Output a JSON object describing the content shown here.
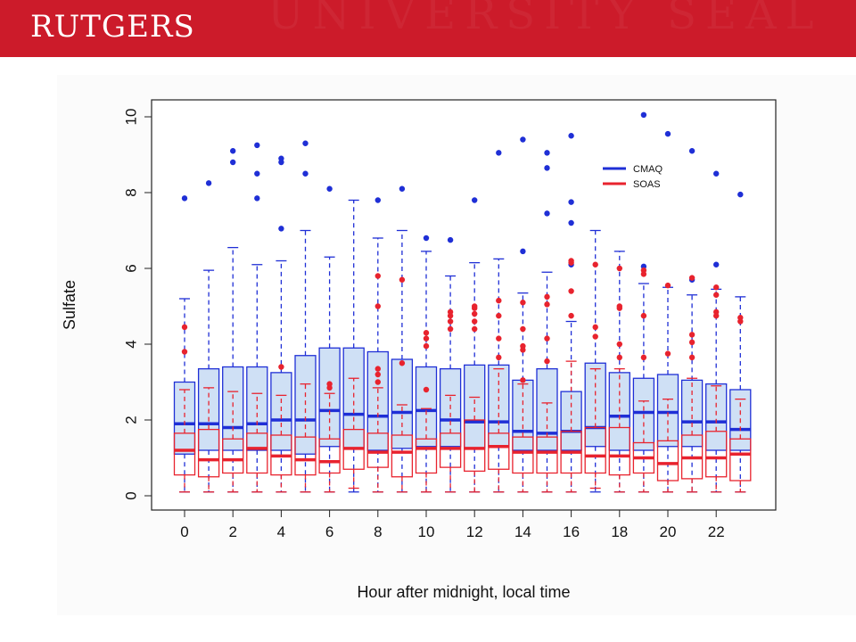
{
  "header": {
    "logo_text": "RUTGERS",
    "banner_color": "#cc1b2a"
  },
  "chart_data": {
    "type": "box",
    "title": "",
    "xlabel": "Hour after midnight, local time",
    "ylabel": "Sulfate",
    "categories": [
      0,
      1,
      2,
      3,
      4,
      5,
      6,
      7,
      8,
      9,
      10,
      11,
      12,
      13,
      14,
      15,
      16,
      17,
      18,
      19,
      20,
      21,
      22,
      23
    ],
    "xticks": [
      0,
      2,
      4,
      6,
      8,
      10,
      12,
      14,
      16,
      18,
      20,
      22
    ],
    "ylim": [
      0,
      10
    ],
    "yticks": [
      0,
      2,
      4,
      6,
      8,
      10
    ],
    "grid": false,
    "legend_position": "top-right",
    "series": [
      {
        "name": "CMAQ",
        "color": "#1f2fd6",
        "fill": "#cfe0f5",
        "boxes": [
          {
            "whisker_low": 0.1,
            "q1": 1.1,
            "median": 1.9,
            "q3": 3.0,
            "whisker_high": 5.2,
            "outliers": [
              7.85
            ]
          },
          {
            "whisker_low": 0.1,
            "q1": 1.2,
            "median": 1.9,
            "q3": 3.35,
            "whisker_high": 5.95,
            "outliers": [
              8.25
            ]
          },
          {
            "whisker_low": 0.1,
            "q1": 1.2,
            "median": 1.8,
            "q3": 3.4,
            "whisker_high": 6.55,
            "outliers": [
              8.8,
              9.1
            ]
          },
          {
            "whisker_low": 0.1,
            "q1": 1.2,
            "median": 1.9,
            "q3": 3.4,
            "whisker_high": 6.1,
            "outliers": [
              7.85,
              8.5,
              9.25
            ]
          },
          {
            "whisker_low": 0.1,
            "q1": 1.2,
            "median": 2.0,
            "q3": 3.25,
            "whisker_high": 6.2,
            "outliers": [
              7.05,
              8.8,
              8.9
            ]
          },
          {
            "whisker_low": 0.1,
            "q1": 1.1,
            "median": 2.0,
            "q3": 3.7,
            "whisker_high": 7.0,
            "outliers": [
              8.5,
              9.3
            ]
          },
          {
            "whisker_low": 0.1,
            "q1": 1.3,
            "median": 2.25,
            "q3": 3.9,
            "whisker_high": 6.3,
            "outliers": [
              8.1
            ]
          },
          {
            "whisker_low": 0.1,
            "q1": 1.25,
            "median": 2.15,
            "q3": 3.9,
            "whisker_high": 7.8,
            "outliers": []
          },
          {
            "whisker_low": 0.1,
            "q1": 1.2,
            "median": 2.1,
            "q3": 3.8,
            "whisker_high": 6.8,
            "outliers": [
              7.8
            ]
          },
          {
            "whisker_low": 0.1,
            "q1": 1.25,
            "median": 2.2,
            "q3": 3.6,
            "whisker_high": 7.0,
            "outliers": [
              8.1
            ]
          },
          {
            "whisker_low": 0.1,
            "q1": 1.3,
            "median": 2.25,
            "q3": 3.4,
            "whisker_high": 6.45,
            "outliers": [
              6.8
            ]
          },
          {
            "whisker_low": 0.1,
            "q1": 1.3,
            "median": 2.0,
            "q3": 3.35,
            "whisker_high": 5.8,
            "outliers": [
              6.75
            ]
          },
          {
            "whisker_low": 0.1,
            "q1": 1.25,
            "median": 1.95,
            "q3": 3.45,
            "whisker_high": 6.15,
            "outliers": [
              7.8
            ]
          },
          {
            "whisker_low": 0.1,
            "q1": 1.3,
            "median": 1.95,
            "q3": 3.45,
            "whisker_high": 6.25,
            "outliers": [
              9.05
            ]
          },
          {
            "whisker_low": 0.1,
            "q1": 1.2,
            "median": 1.7,
            "q3": 3.05,
            "whisker_high": 5.35,
            "outliers": [
              6.45,
              9.4
            ]
          },
          {
            "whisker_low": 0.1,
            "q1": 1.2,
            "median": 1.65,
            "q3": 3.35,
            "whisker_high": 5.9,
            "outliers": [
              7.45,
              8.65,
              9.05
            ]
          },
          {
            "whisker_low": 0.1,
            "q1": 1.2,
            "median": 1.7,
            "q3": 2.75,
            "whisker_high": 4.6,
            "outliers": [
              6.1,
              7.2,
              7.75,
              9.5
            ]
          },
          {
            "whisker_low": 0.1,
            "q1": 1.3,
            "median": 1.8,
            "q3": 3.5,
            "whisker_high": 7.0,
            "outliers": []
          },
          {
            "whisker_low": 0.1,
            "q1": 1.2,
            "median": 2.1,
            "q3": 3.25,
            "whisker_high": 6.45,
            "outliers": []
          },
          {
            "whisker_low": 0.1,
            "q1": 1.2,
            "median": 2.2,
            "q3": 3.1,
            "whisker_high": 5.6,
            "outliers": [
              6.05,
              10.05
            ]
          },
          {
            "whisker_low": 0.1,
            "q1": 1.3,
            "median": 2.2,
            "q3": 3.2,
            "whisker_high": 5.5,
            "outliers": [
              9.55
            ]
          },
          {
            "whisker_low": 0.1,
            "q1": 1.3,
            "median": 1.95,
            "q3": 3.05,
            "whisker_high": 5.3,
            "outliers": [
              5.7,
              9.1
            ]
          },
          {
            "whisker_low": 0.1,
            "q1": 1.2,
            "median": 1.95,
            "q3": 2.95,
            "whisker_high": 5.45,
            "outliers": [
              6.1,
              8.5
            ]
          },
          {
            "whisker_low": 0.1,
            "q1": 1.2,
            "median": 1.75,
            "q3": 2.8,
            "whisker_high": 5.25,
            "outliers": [
              7.95
            ]
          }
        ]
      },
      {
        "name": "SOAS",
        "color": "#e8232e",
        "fill": "none",
        "boxes": [
          {
            "whisker_low": 0.1,
            "q1": 0.55,
            "median": 1.2,
            "q3": 1.65,
            "whisker_high": 2.8,
            "outliers": [
              3.8,
              4.45
            ]
          },
          {
            "whisker_low": 0.1,
            "q1": 0.5,
            "median": 0.95,
            "q3": 1.75,
            "whisker_high": 2.85,
            "outliers": []
          },
          {
            "whisker_low": 0.1,
            "q1": 0.6,
            "median": 0.95,
            "q3": 1.5,
            "whisker_high": 2.75,
            "outliers": []
          },
          {
            "whisker_low": 0.1,
            "q1": 0.6,
            "median": 1.25,
            "q3": 1.65,
            "whisker_high": 2.7,
            "outliers": []
          },
          {
            "whisker_low": 0.1,
            "q1": 0.55,
            "median": 1.05,
            "q3": 1.6,
            "whisker_high": 2.65,
            "outliers": [
              3.4
            ]
          },
          {
            "whisker_low": 0.1,
            "q1": 0.55,
            "median": 0.95,
            "q3": 1.55,
            "whisker_high": 2.95,
            "outliers": []
          },
          {
            "whisker_low": 0.1,
            "q1": 0.6,
            "median": 0.9,
            "q3": 1.5,
            "whisker_high": 2.7,
            "outliers": [
              2.85,
              2.95
            ]
          },
          {
            "whisker_low": 0.2,
            "q1": 0.7,
            "median": 1.25,
            "q3": 1.75,
            "whisker_high": 3.1,
            "outliers": []
          },
          {
            "whisker_low": 0.1,
            "q1": 0.75,
            "median": 1.15,
            "q3": 1.65,
            "whisker_high": 2.85,
            "outliers": [
              3.0,
              3.2,
              3.35,
              5.0,
              5.8
            ]
          },
          {
            "whisker_low": 0.1,
            "q1": 0.5,
            "median": 1.15,
            "q3": 1.6,
            "whisker_high": 2.4,
            "outliers": [
              3.5,
              5.7
            ]
          },
          {
            "whisker_low": 0.1,
            "q1": 0.6,
            "median": 1.25,
            "q3": 1.5,
            "whisker_high": 2.3,
            "outliers": [
              2.8,
              3.95,
              4.15,
              4.3
            ]
          },
          {
            "whisker_low": 0.1,
            "q1": 0.75,
            "median": 1.25,
            "q3": 1.65,
            "whisker_high": 2.65,
            "outliers": [
              4.4,
              4.6,
              4.75,
              4.85
            ]
          },
          {
            "whisker_low": 0.1,
            "q1": 0.65,
            "median": 1.25,
            "q3": 2.0,
            "whisker_high": 2.6,
            "outliers": [
              4.4,
              4.6,
              4.8,
              4.95,
              5.0
            ]
          },
          {
            "whisker_low": 0.1,
            "q1": 0.7,
            "median": 1.3,
            "q3": 1.65,
            "whisker_high": 3.35,
            "outliers": [
              3.65,
              4.15,
              4.75,
              5.15
            ]
          },
          {
            "whisker_low": 0.1,
            "q1": 0.6,
            "median": 1.15,
            "q3": 1.55,
            "whisker_high": 2.95,
            "outliers": [
              3.05,
              3.85,
              3.95,
              4.4,
              5.1
            ]
          },
          {
            "whisker_low": 0.1,
            "q1": 0.6,
            "median": 1.15,
            "q3": 1.55,
            "whisker_high": 2.45,
            "outliers": [
              3.55,
              4.15,
              5.05,
              5.25
            ]
          },
          {
            "whisker_low": 0.1,
            "q1": 0.6,
            "median": 1.15,
            "q3": 1.7,
            "whisker_high": 3.55,
            "outliers": [
              4.75,
              5.4,
              6.15,
              6.2
            ]
          },
          {
            "whisker_low": 0.2,
            "q1": 0.6,
            "median": 1.05,
            "q3": 1.8,
            "whisker_high": 3.35,
            "outliers": [
              4.2,
              4.45,
              6.1
            ]
          },
          {
            "whisker_low": 0.1,
            "q1": 0.55,
            "median": 1.05,
            "q3": 1.8,
            "whisker_high": 3.35,
            "outliers": [
              3.65,
              4.0,
              4.95,
              5.0,
              6.0
            ]
          },
          {
            "whisker_low": 0.1,
            "q1": 0.6,
            "median": 1.0,
            "q3": 1.4,
            "whisker_high": 2.5,
            "outliers": [
              3.65,
              4.75,
              5.85,
              5.95
            ]
          },
          {
            "whisker_low": 0.1,
            "q1": 0.4,
            "median": 0.85,
            "q3": 1.45,
            "whisker_high": 2.55,
            "outliers": [
              3.75,
              5.55
            ]
          },
          {
            "whisker_low": 0.1,
            "q1": 0.45,
            "median": 1.0,
            "q3": 1.6,
            "whisker_high": 3.1,
            "outliers": [
              3.65,
              4.05,
              4.25,
              5.75
            ]
          },
          {
            "whisker_low": 0.1,
            "q1": 0.5,
            "median": 1.0,
            "q3": 1.7,
            "whisker_high": 2.9,
            "outliers": [
              4.75,
              4.85,
              5.3,
              5.5
            ]
          },
          {
            "whisker_low": 0.1,
            "q1": 0.4,
            "median": 1.1,
            "q3": 1.5,
            "whisker_high": 2.55,
            "outliers": [
              4.6,
              4.7
            ]
          }
        ]
      }
    ]
  }
}
